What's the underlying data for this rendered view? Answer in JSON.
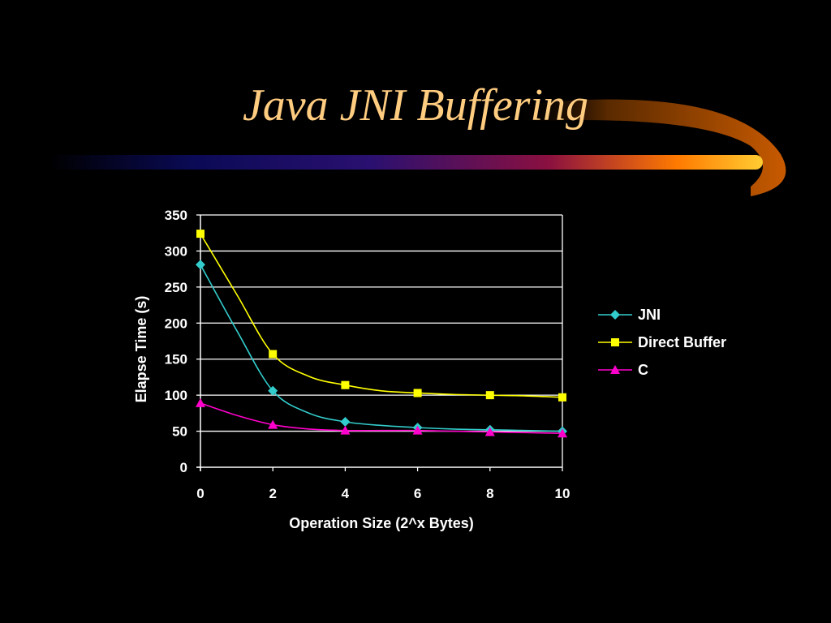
{
  "slide": {
    "title": "Java JNI Buffering"
  },
  "colors": {
    "background": "#000000",
    "title": "#ffcc80",
    "axis": "#ffffff",
    "grid": "#ffffff",
    "plot_background": "#000000"
  },
  "chart_data": {
    "type": "line",
    "title": "",
    "xlabel": "Operation Size (2^x Bytes)",
    "ylabel": "Elapse Time (s)",
    "xlim": [
      0,
      10
    ],
    "ylim": [
      0,
      350
    ],
    "xticks": [
      0,
      2,
      4,
      6,
      8,
      10
    ],
    "yticks": [
      0,
      50,
      100,
      150,
      200,
      250,
      300,
      350
    ],
    "grid": "horizontal",
    "legend_position": "right",
    "series": [
      {
        "name": "JNI",
        "color": "#33cccc",
        "marker": "diamond",
        "x": [
          0,
          1,
          2,
          3,
          4,
          5,
          6,
          7,
          8,
          9,
          10
        ],
        "y": [
          281,
          190,
          106,
          75,
          63,
          58,
          55,
          53,
          52,
          51,
          50
        ]
      },
      {
        "name": "Direct Buffer",
        "color": "#ffff00",
        "marker": "square",
        "x": [
          0,
          1,
          2,
          3,
          4,
          5,
          6,
          7,
          8,
          9,
          10
        ],
        "y": [
          324,
          240,
          157,
          126,
          114,
          106,
          103,
          101,
          100,
          99,
          97
        ]
      },
      {
        "name": "C",
        "color": "#ff00cc",
        "marker": "triangle",
        "x": [
          0,
          1,
          2,
          3,
          4,
          5,
          6,
          7,
          8,
          9,
          10
        ],
        "y": [
          89,
          72,
          59,
          53,
          51,
          51,
          51,
          50,
          49,
          48,
          47
        ]
      }
    ]
  }
}
